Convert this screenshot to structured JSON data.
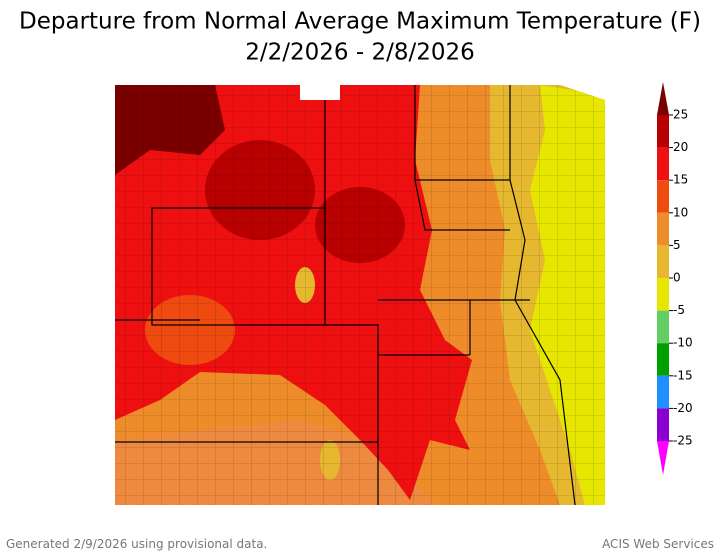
{
  "header": {
    "title": "Departure from Normal Average Maximum Temperature (F)",
    "subtitle": "2/2/2026 - 2/8/2026"
  },
  "legend": {
    "ticks": [
      25,
      20,
      15,
      10,
      5,
      0,
      -5,
      -10,
      -15,
      -20,
      -25
    ],
    "colors": [
      "#7a0000",
      "#b80000",
      "#ee1010",
      "#ef4a10",
      "#ef8c2a",
      "#e6b830",
      "#e6e600",
      "#66cc66",
      "#00a000",
      "#1e90ff",
      "#8a00d0",
      "#ff00ff"
    ]
  },
  "footer": {
    "left": "Generated 2/9/2026 using provisional data.",
    "right": "ACIS Web Services"
  }
}
